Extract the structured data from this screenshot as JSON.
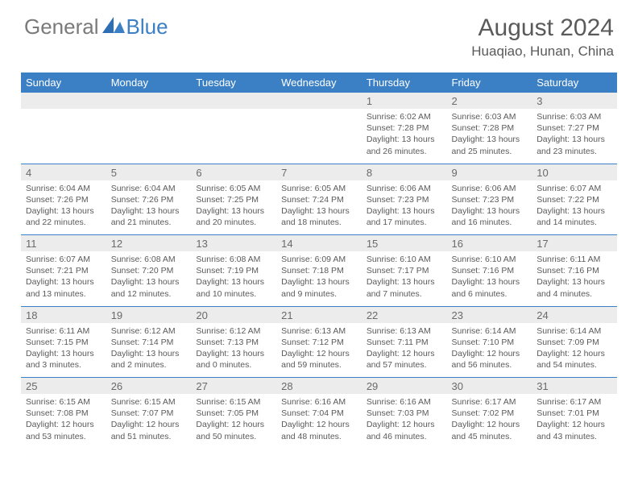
{
  "logo": {
    "general": "General",
    "blue": "Blue"
  },
  "title": "August 2024",
  "location": "Huaqiao, Hunan, China",
  "colors": {
    "header_bg": "#3b7fc4",
    "header_text": "#ffffff",
    "date_bg": "#ececec",
    "cell_text": "#5a5a5a",
    "border": "#3b7fc4",
    "logo_gray": "#7a7a7a",
    "logo_blue": "#3b7fc4"
  },
  "typography": {
    "title_fontsize": 30,
    "location_fontsize": 17,
    "dayheader_fontsize": 13,
    "date_fontsize": 13,
    "info_fontsize": 10.5
  },
  "day_names": [
    "Sunday",
    "Monday",
    "Tuesday",
    "Wednesday",
    "Thursday",
    "Friday",
    "Saturday"
  ],
  "weeks": [
    [
      null,
      null,
      null,
      null,
      {
        "date": "1",
        "sunrise": "6:02 AM",
        "sunset": "7:28 PM",
        "daylight": "13 hours and 26 minutes."
      },
      {
        "date": "2",
        "sunrise": "6:03 AM",
        "sunset": "7:28 PM",
        "daylight": "13 hours and 25 minutes."
      },
      {
        "date": "3",
        "sunrise": "6:03 AM",
        "sunset": "7:27 PM",
        "daylight": "13 hours and 23 minutes."
      }
    ],
    [
      {
        "date": "4",
        "sunrise": "6:04 AM",
        "sunset": "7:26 PM",
        "daylight": "13 hours and 22 minutes."
      },
      {
        "date": "5",
        "sunrise": "6:04 AM",
        "sunset": "7:26 PM",
        "daylight": "13 hours and 21 minutes."
      },
      {
        "date": "6",
        "sunrise": "6:05 AM",
        "sunset": "7:25 PM",
        "daylight": "13 hours and 20 minutes."
      },
      {
        "date": "7",
        "sunrise": "6:05 AM",
        "sunset": "7:24 PM",
        "daylight": "13 hours and 18 minutes."
      },
      {
        "date": "8",
        "sunrise": "6:06 AM",
        "sunset": "7:23 PM",
        "daylight": "13 hours and 17 minutes."
      },
      {
        "date": "9",
        "sunrise": "6:06 AM",
        "sunset": "7:23 PM",
        "daylight": "13 hours and 16 minutes."
      },
      {
        "date": "10",
        "sunrise": "6:07 AM",
        "sunset": "7:22 PM",
        "daylight": "13 hours and 14 minutes."
      }
    ],
    [
      {
        "date": "11",
        "sunrise": "6:07 AM",
        "sunset": "7:21 PM",
        "daylight": "13 hours and 13 minutes."
      },
      {
        "date": "12",
        "sunrise": "6:08 AM",
        "sunset": "7:20 PM",
        "daylight": "13 hours and 12 minutes."
      },
      {
        "date": "13",
        "sunrise": "6:08 AM",
        "sunset": "7:19 PM",
        "daylight": "13 hours and 10 minutes."
      },
      {
        "date": "14",
        "sunrise": "6:09 AM",
        "sunset": "7:18 PM",
        "daylight": "13 hours and 9 minutes."
      },
      {
        "date": "15",
        "sunrise": "6:10 AM",
        "sunset": "7:17 PM",
        "daylight": "13 hours and 7 minutes."
      },
      {
        "date": "16",
        "sunrise": "6:10 AM",
        "sunset": "7:16 PM",
        "daylight": "13 hours and 6 minutes."
      },
      {
        "date": "17",
        "sunrise": "6:11 AM",
        "sunset": "7:16 PM",
        "daylight": "13 hours and 4 minutes."
      }
    ],
    [
      {
        "date": "18",
        "sunrise": "6:11 AM",
        "sunset": "7:15 PM",
        "daylight": "13 hours and 3 minutes."
      },
      {
        "date": "19",
        "sunrise": "6:12 AM",
        "sunset": "7:14 PM",
        "daylight": "13 hours and 2 minutes."
      },
      {
        "date": "20",
        "sunrise": "6:12 AM",
        "sunset": "7:13 PM",
        "daylight": "13 hours and 0 minutes."
      },
      {
        "date": "21",
        "sunrise": "6:13 AM",
        "sunset": "7:12 PM",
        "daylight": "12 hours and 59 minutes."
      },
      {
        "date": "22",
        "sunrise": "6:13 AM",
        "sunset": "7:11 PM",
        "daylight": "12 hours and 57 minutes."
      },
      {
        "date": "23",
        "sunrise": "6:14 AM",
        "sunset": "7:10 PM",
        "daylight": "12 hours and 56 minutes."
      },
      {
        "date": "24",
        "sunrise": "6:14 AM",
        "sunset": "7:09 PM",
        "daylight": "12 hours and 54 minutes."
      }
    ],
    [
      {
        "date": "25",
        "sunrise": "6:15 AM",
        "sunset": "7:08 PM",
        "daylight": "12 hours and 53 minutes."
      },
      {
        "date": "26",
        "sunrise": "6:15 AM",
        "sunset": "7:07 PM",
        "daylight": "12 hours and 51 minutes."
      },
      {
        "date": "27",
        "sunrise": "6:15 AM",
        "sunset": "7:05 PM",
        "daylight": "12 hours and 50 minutes."
      },
      {
        "date": "28",
        "sunrise": "6:16 AM",
        "sunset": "7:04 PM",
        "daylight": "12 hours and 48 minutes."
      },
      {
        "date": "29",
        "sunrise": "6:16 AM",
        "sunset": "7:03 PM",
        "daylight": "12 hours and 46 minutes."
      },
      {
        "date": "30",
        "sunrise": "6:17 AM",
        "sunset": "7:02 PM",
        "daylight": "12 hours and 45 minutes."
      },
      {
        "date": "31",
        "sunrise": "6:17 AM",
        "sunset": "7:01 PM",
        "daylight": "12 hours and 43 minutes."
      }
    ]
  ],
  "labels": {
    "sunrise": "Sunrise:",
    "sunset": "Sunset:",
    "daylight": "Daylight:"
  }
}
